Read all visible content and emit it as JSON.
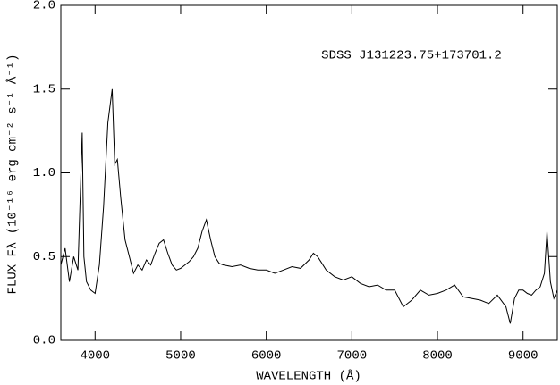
{
  "chart_data": {
    "type": "line",
    "annotation": "SDSS J131223.75+173701.2",
    "xlabel": "WAVELENGTH (Å)",
    "ylabel": "FLUX Fλ (10⁻¹⁶ erg cm⁻² s⁻¹ Å⁻¹)",
    "color": "#000000",
    "xlim": [
      3600,
      9400
    ],
    "ylim": [
      0,
      2
    ],
    "xticks": [
      4000,
      5000,
      6000,
      7000,
      8000,
      9000
    ],
    "yticks": [
      {
        "value": 0,
        "label": "0.0"
      },
      0.5,
      {
        "value": 1,
        "label": "1.0"
      },
      1.5,
      {
        "value": 2,
        "label": "2.0"
      }
    ],
    "x": [
      3600,
      3650,
      3700,
      3750,
      3800,
      3850,
      3870,
      3900,
      3950,
      4000,
      4050,
      4100,
      4150,
      4200,
      4230,
      4260,
      4300,
      4350,
      4400,
      4450,
      4500,
      4550,
      4600,
      4650,
      4700,
      4750,
      4800,
      4850,
      4900,
      4950,
      5000,
      5050,
      5100,
      5150,
      5200,
      5250,
      5300,
      5350,
      5400,
      5450,
      5500,
      5600,
      5700,
      5800,
      5900,
      6000,
      6100,
      6200,
      6300,
      6400,
      6500,
      6550,
      6600,
      6650,
      6700,
      6800,
      6900,
      7000,
      7100,
      7200,
      7300,
      7400,
      7500,
      7600,
      7700,
      7800,
      7900,
      8000,
      8100,
      8200,
      8300,
      8400,
      8500,
      8600,
      8700,
      8800,
      8850,
      8900,
      8950,
      9000,
      9050,
      9100,
      9150,
      9200,
      9250,
      9280,
      9320,
      9360,
      9400
    ],
    "values": [
      0.45,
      0.55,
      0.35,
      0.5,
      0.42,
      1.24,
      0.5,
      0.35,
      0.3,
      0.28,
      0.45,
      0.8,
      1.3,
      1.5,
      1.05,
      1.08,
      0.85,
      0.6,
      0.5,
      0.4,
      0.45,
      0.42,
      0.48,
      0.45,
      0.52,
      0.58,
      0.6,
      0.52,
      0.45,
      0.42,
      0.43,
      0.45,
      0.47,
      0.5,
      0.55,
      0.65,
      0.72,
      0.6,
      0.5,
      0.46,
      0.45,
      0.44,
      0.45,
      0.43,
      0.42,
      0.42,
      0.4,
      0.42,
      0.44,
      0.43,
      0.48,
      0.52,
      0.5,
      0.46,
      0.42,
      0.38,
      0.36,
      0.38,
      0.34,
      0.32,
      0.33,
      0.3,
      0.3,
      0.2,
      0.24,
      0.3,
      0.27,
      0.28,
      0.3,
      0.33,
      0.26,
      0.25,
      0.24,
      0.22,
      0.27,
      0.2,
      0.1,
      0.25,
      0.3,
      0.3,
      0.28,
      0.27,
      0.3,
      0.32,
      0.4,
      0.65,
      0.35,
      0.25,
      0.3
    ]
  }
}
